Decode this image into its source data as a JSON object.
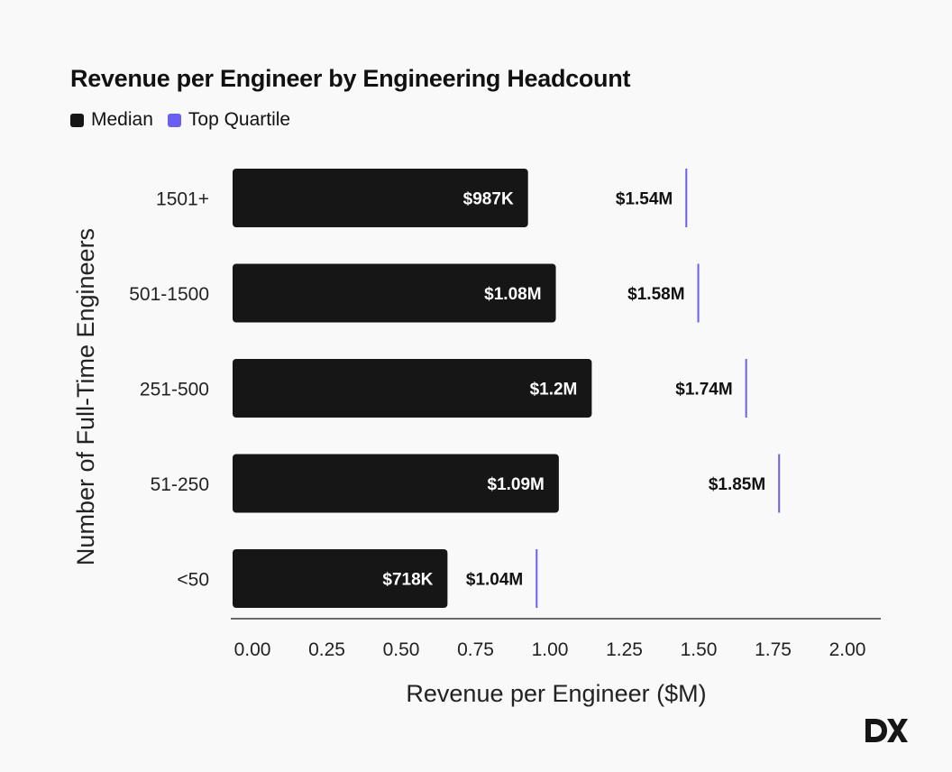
{
  "title": "Revenue per Engineer by Engineering Headcount",
  "legend": {
    "median_label": "Median",
    "top_quartile_label": "Top Quartile"
  },
  "colors": {
    "median": "#161616",
    "top_quartile": "#6a5ff0",
    "background": "#f9f9f9"
  },
  "logo": "DX",
  "chart_data": {
    "type": "bar",
    "orientation": "horizontal",
    "categories": [
      "1501+",
      "501-1500",
      "251-500",
      "51-250",
      "<50"
    ],
    "series": [
      {
        "name": "Median",
        "values": [
          0.987,
          1.08,
          1.2,
          1.09,
          0.718
        ],
        "labels": [
          "$987K",
          "$1.08M",
          "$1.2M",
          "$1.09M",
          "$718K"
        ]
      },
      {
        "name": "Top Quartile",
        "marker": "line",
        "values": [
          1.54,
          1.58,
          1.74,
          1.85,
          1.04
        ],
        "labels": [
          "$1.54M",
          "$1.58M",
          "$1.74M",
          "$1.85M",
          "$1.04M"
        ]
      }
    ],
    "xlabel": "Revenue per Engineer ($M)",
    "ylabel": "Number of Full-Time Engineers",
    "xlim": [
      0,
      2.0
    ],
    "xticks": [
      0,
      0.25,
      0.5,
      0.75,
      1.0,
      1.25,
      1.5,
      1.75,
      2.0
    ],
    "xtick_labels": [
      "0.00",
      "0.25",
      "0.50",
      "0.75",
      "1.00",
      "1.25",
      "1.50",
      "1.75",
      "2.00"
    ],
    "grid": false,
    "legend_position": "top-left"
  }
}
